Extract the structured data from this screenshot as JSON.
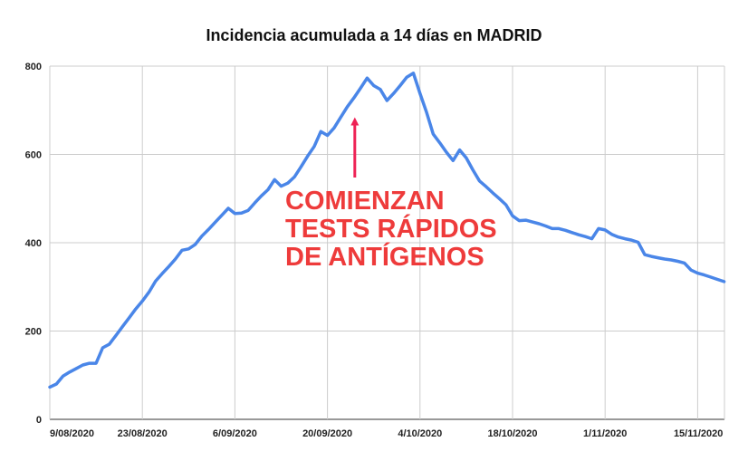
{
  "chart_data": {
    "type": "line",
    "title": "Incidencia acumulada a 14 días en MADRID",
    "xlabel": "",
    "ylabel": "",
    "ylim": [
      0,
      800
    ],
    "yticks": [
      0,
      200,
      400,
      600,
      800
    ],
    "grid": true,
    "line_color": "#4a86e8",
    "annotation_color": "#ee3b3b",
    "xticks": [
      {
        "date": "2020-08-09",
        "label": "9/08/2020"
      },
      {
        "date": "2020-08-23",
        "label": "23/08/2020"
      },
      {
        "date": "2020-09-06",
        "label": "6/09/2020"
      },
      {
        "date": "2020-09-20",
        "label": "20/09/2020"
      },
      {
        "date": "2020-10-04",
        "label": "4/10/2020"
      },
      {
        "date": "2020-10-18",
        "label": "18/10/2020"
      },
      {
        "date": "2020-11-01",
        "label": "1/11/2020"
      },
      {
        "date": "2020-11-15",
        "label": "15/11/2020"
      }
    ],
    "annotation": {
      "lines": [
        "COMIENZAN",
        "TESTS RÁPIDOS",
        "DE ANTÍGENOS"
      ],
      "points_to": {
        "date": "2020-09-24",
        "value": 680
      }
    },
    "series": [
      {
        "points": [
          [
            "2020-08-09",
            73
          ],
          [
            "2020-08-10",
            80
          ],
          [
            "2020-08-11",
            98
          ],
          [
            "2020-08-12",
            107
          ],
          [
            "2020-08-13",
            115
          ],
          [
            "2020-08-14",
            123
          ],
          [
            "2020-08-15",
            127
          ],
          [
            "2020-08-16",
            127
          ],
          [
            "2020-08-17",
            162
          ],
          [
            "2020-08-18",
            170
          ],
          [
            "2020-08-19",
            190
          ],
          [
            "2020-08-20",
            210
          ],
          [
            "2020-08-21",
            230
          ],
          [
            "2020-08-22",
            250
          ],
          [
            "2020-08-23",
            268
          ],
          [
            "2020-08-24",
            288
          ],
          [
            "2020-08-25",
            313
          ],
          [
            "2020-08-26",
            330
          ],
          [
            "2020-08-27",
            346
          ],
          [
            "2020-08-28",
            363
          ],
          [
            "2020-08-29",
            383
          ],
          [
            "2020-08-30",
            386
          ],
          [
            "2020-08-31",
            396
          ],
          [
            "2020-09-01",
            415
          ],
          [
            "2020-09-02",
            430
          ],
          [
            "2020-09-03",
            446
          ],
          [
            "2020-09-04",
            462
          ],
          [
            "2020-09-05",
            478
          ],
          [
            "2020-09-06",
            466
          ],
          [
            "2020-09-07",
            467
          ],
          [
            "2020-09-08",
            473
          ],
          [
            "2020-09-09",
            490
          ],
          [
            "2020-09-10",
            506
          ],
          [
            "2020-09-11",
            520
          ],
          [
            "2020-09-12",
            543
          ],
          [
            "2020-09-13",
            528
          ],
          [
            "2020-09-14",
            535
          ],
          [
            "2020-09-15",
            549
          ],
          [
            "2020-09-16",
            572
          ],
          [
            "2020-09-17",
            596
          ],
          [
            "2020-09-18",
            618
          ],
          [
            "2020-09-19",
            652
          ],
          [
            "2020-09-20",
            643
          ],
          [
            "2020-09-21",
            660
          ],
          [
            "2020-09-22",
            684
          ],
          [
            "2020-09-23",
            708
          ],
          [
            "2020-09-24",
            728
          ],
          [
            "2020-09-25",
            750
          ],
          [
            "2020-09-26",
            773
          ],
          [
            "2020-09-27",
            756
          ],
          [
            "2020-09-28",
            747
          ],
          [
            "2020-09-29",
            722
          ],
          [
            "2020-09-30",
            738
          ],
          [
            "2020-10-01",
            756
          ],
          [
            "2020-10-02",
            775
          ],
          [
            "2020-10-03",
            784
          ],
          [
            "2020-10-04",
            738
          ],
          [
            "2020-10-05",
            695
          ],
          [
            "2020-10-06",
            646
          ],
          [
            "2020-10-07",
            626
          ],
          [
            "2020-10-08",
            605
          ],
          [
            "2020-10-09",
            586
          ],
          [
            "2020-10-10",
            610
          ],
          [
            "2020-10-11",
            592
          ],
          [
            "2020-10-12",
            565
          ],
          [
            "2020-10-13",
            540
          ],
          [
            "2020-10-14",
            527
          ],
          [
            "2020-10-15",
            513
          ],
          [
            "2020-10-16",
            500
          ],
          [
            "2020-10-17",
            486
          ],
          [
            "2020-10-18",
            461
          ],
          [
            "2020-10-19",
            450
          ],
          [
            "2020-10-20",
            451
          ],
          [
            "2020-10-21",
            447
          ],
          [
            "2020-10-22",
            443
          ],
          [
            "2020-10-23",
            438
          ],
          [
            "2020-10-24",
            432
          ],
          [
            "2020-10-25",
            432
          ],
          [
            "2020-10-26",
            428
          ],
          [
            "2020-10-27",
            423
          ],
          [
            "2020-10-28",
            418
          ],
          [
            "2020-10-29",
            414
          ],
          [
            "2020-10-30",
            409
          ],
          [
            "2020-10-31",
            432
          ],
          [
            "2020-11-01",
            429
          ],
          [
            "2020-11-02",
            419
          ],
          [
            "2020-11-03",
            413
          ],
          [
            "2020-11-04",
            409
          ],
          [
            "2020-11-05",
            406
          ],
          [
            "2020-11-06",
            401
          ],
          [
            "2020-11-07",
            373
          ],
          [
            "2020-11-08",
            369
          ],
          [
            "2020-11-09",
            366
          ],
          [
            "2020-11-10",
            363
          ],
          [
            "2020-11-11",
            361
          ],
          [
            "2020-11-12",
            358
          ],
          [
            "2020-11-13",
            354
          ],
          [
            "2020-11-14",
            338
          ],
          [
            "2020-11-15",
            331
          ],
          [
            "2020-11-16",
            327
          ],
          [
            "2020-11-17",
            322
          ],
          [
            "2020-11-18",
            317
          ],
          [
            "2020-11-19",
            312
          ]
        ]
      }
    ]
  }
}
